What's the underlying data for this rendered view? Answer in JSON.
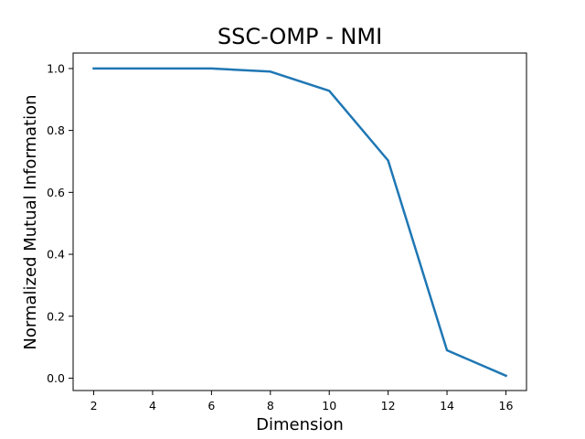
{
  "chart_data": {
    "type": "line",
    "title": "SSC-OMP - NMI",
    "xlabel": "Dimension",
    "ylabel": "Normalized Mutual Information",
    "x": [
      2,
      4,
      6,
      8,
      10,
      12,
      14,
      16
    ],
    "series": [
      {
        "values": [
          1.0,
          1.0,
          1.0,
          0.99,
          0.928,
          0.703,
          0.09,
          0.008
        ],
        "color": "#1f77b4"
      }
    ],
    "xlim": [
      1.3,
      16.7
    ],
    "ylim": [
      -0.04,
      1.05
    ],
    "xticks": [
      2,
      4,
      6,
      8,
      10,
      12,
      14,
      16
    ],
    "yticks": [
      0.0,
      0.2,
      0.4,
      0.6,
      0.8,
      1.0
    ],
    "xtick_labels": [
      "2",
      "4",
      "6",
      "8",
      "10",
      "12",
      "14",
      "16"
    ],
    "ytick_labels": [
      "0.0",
      "0.2",
      "0.4",
      "0.6",
      "0.8",
      "1.0"
    ],
    "grid": false,
    "legend": false
  }
}
